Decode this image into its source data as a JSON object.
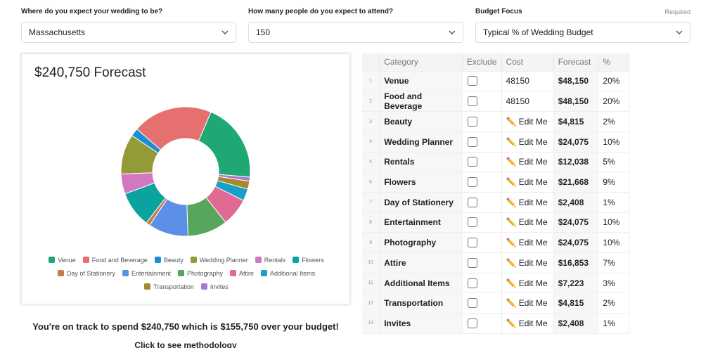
{
  "form": {
    "fields": [
      {
        "label": "Where do you expect your wedding to be?",
        "value": "Massachusetts"
      },
      {
        "label": "How many people do you expect to attend?",
        "value": "150"
      },
      {
        "label": "Budget Focus",
        "value": "Typical % of Wedding Budget",
        "note": "Required"
      }
    ]
  },
  "chart_data": {
    "type": "pie",
    "donut": true,
    "title": "$240,750 Forecast",
    "categories": [
      "Venue",
      "Food and Beverage",
      "Beauty",
      "Wedding Planner",
      "Rentals",
      "Flowers",
      "Day of Stationery",
      "Entertainment",
      "Photography",
      "Attire",
      "Additional Items",
      "Transportation",
      "Invites"
    ],
    "values": [
      20,
      20,
      2,
      10,
      5,
      9,
      1,
      10,
      10,
      7,
      3,
      2,
      1
    ],
    "value_labels": [
      "20%",
      "20%",
      "2%",
      "10%",
      "5%",
      "9%",
      "1%",
      "10%",
      "10%",
      "7%",
      "3%",
      "2%",
      "1%"
    ],
    "colors": [
      "#1fa774",
      "#e5706f",
      "#1a8fd6",
      "#949a37",
      "#d277c2",
      "#0aa3a0",
      "#c77b48",
      "#5b8fe8",
      "#58a55c",
      "#e06a94",
      "#1aa0c8",
      "#a7892b",
      "#a779d1"
    ],
    "legend": "bottom"
  },
  "table": {
    "headers": [
      "Category",
      "Exclude",
      "Cost",
      "Forecast",
      "%"
    ],
    "rows": [
      {
        "index": 1,
        "cost": "48150",
        "forecast": "$48,150"
      },
      {
        "index": 2,
        "cost": "48150",
        "forecast": "$48,150"
      },
      {
        "index": 3,
        "cost": "✏️ Edit Me",
        "forecast": "$4,815"
      },
      {
        "index": 4,
        "cost": "✏️ Edit Me",
        "forecast": "$24,075"
      },
      {
        "index": 5,
        "cost": "✏️ Edit Me",
        "forecast": "$12,038"
      },
      {
        "index": 6,
        "cost": "✏️ Edit Me",
        "forecast": "$21,668"
      },
      {
        "index": 7,
        "cost": "✏️ Edit Me",
        "forecast": "$2,408"
      },
      {
        "index": 8,
        "cost": "✏️ Edit Me",
        "forecast": "$24,075"
      },
      {
        "index": 9,
        "cost": "✏️ Edit Me",
        "forecast": "$24,075"
      },
      {
        "index": 10,
        "cost": "✏️ Edit Me",
        "forecast": "$16,853"
      },
      {
        "index": 11,
        "cost": "✏️ Edit Me",
        "forecast": "$7,223"
      },
      {
        "index": 12,
        "cost": "✏️ Edit Me",
        "forecast": "$4,815"
      },
      {
        "index": 13,
        "cost": "✏️ Edit Me",
        "forecast": "$2,408"
      }
    ]
  },
  "summary": {
    "message": "You're on track to spend $240,750 which is $155,750 over your budget!",
    "link": "Click to see methodology"
  }
}
